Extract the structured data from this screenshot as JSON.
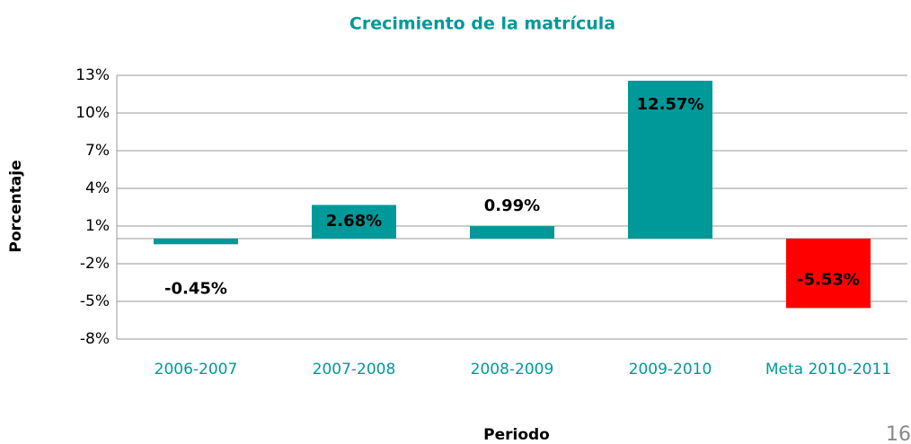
{
  "chart_data": {
    "type": "bar",
    "title": "Crecimiento de la matrícula",
    "x_label": "Periodo",
    "y_label": "Porcentaje",
    "categories": [
      "2006-2007",
      "2007-2008",
      "2008-2009",
      "2009-2010",
      "Meta 2010-2011"
    ],
    "values": [
      -0.45,
      2.68,
      0.99,
      12.57,
      -5.53
    ],
    "value_labels": [
      "-0.45%",
      "2.68%",
      "0.99%",
      "12.57%",
      "-5.53%"
    ],
    "colors": [
      "#009999",
      "#009999",
      "#009999",
      "#009999",
      "#ff0000"
    ],
    "ylim": [
      -8,
      13
    ],
    "yticks": [
      {
        "value": -8,
        "label": "-8%"
      },
      {
        "value": -5,
        "label": "-5%"
      },
      {
        "value": -2,
        "label": "-2%"
      },
      {
        "value": 1,
        "label": "1%"
      },
      {
        "value": 4,
        "label": "4%"
      },
      {
        "value": 7,
        "label": "7%"
      },
      {
        "value": 10,
        "label": "10%"
      },
      {
        "value": 13,
        "label": "13%"
      }
    ],
    "grid": true
  },
  "page_number": "16"
}
